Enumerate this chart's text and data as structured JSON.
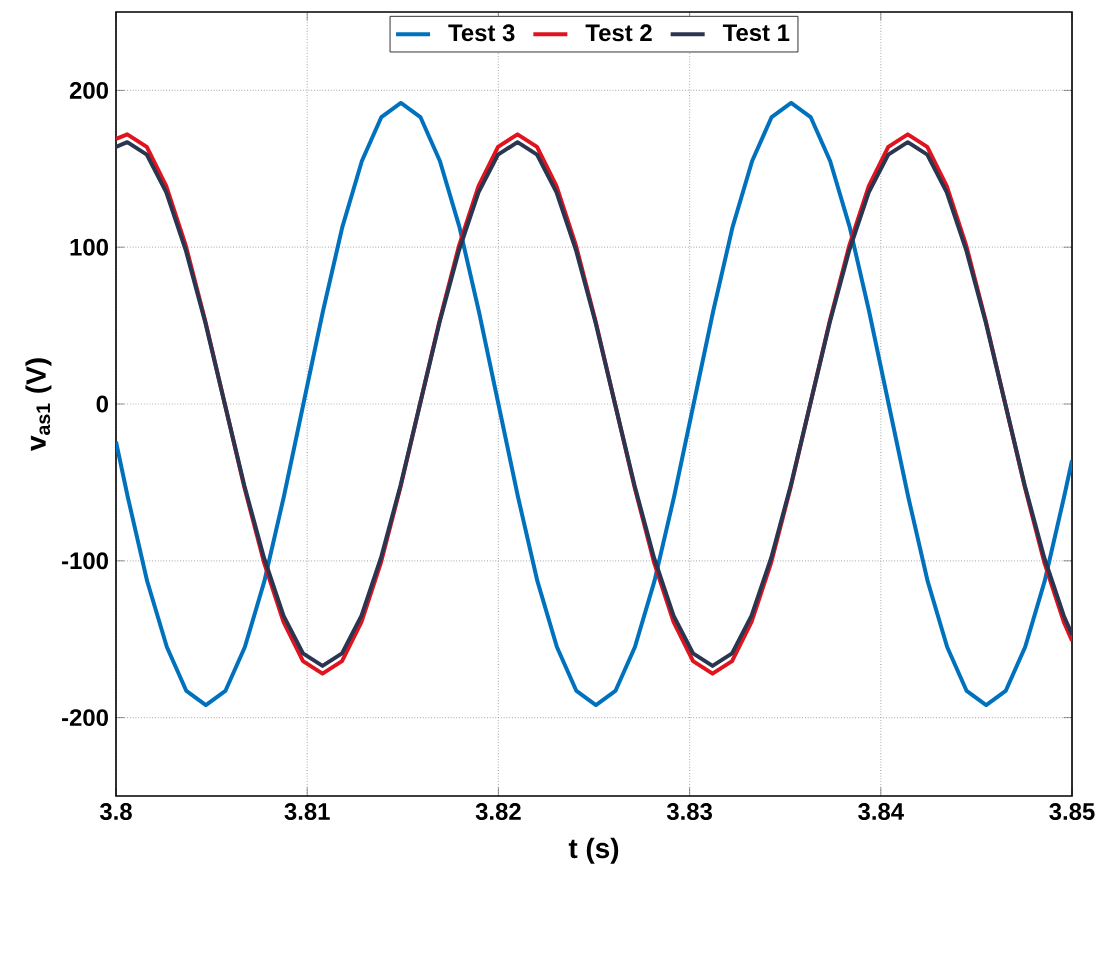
{
  "chart_data": {
    "type": "line",
    "xlabel": "t (s)",
    "ylabel": "**v$_{as1}$ (V)**",
    "xlim": [
      3.8,
      3.85
    ],
    "ylim": [
      -250,
      250
    ],
    "xticks": [
      3.8,
      3.81,
      3.82,
      3.83,
      3.84,
      3.85
    ],
    "yticks": [
      -200,
      -100,
      0,
      100,
      200
    ],
    "grid": true,
    "legend": "top",
    "line_style": "solid",
    "marker": "none",
    "series": [
      {
        "name": "Test 3",
        "color": "#0072bd",
        "x": [
          3.8,
          3.80061,
          3.80163,
          3.80266,
          3.80368,
          3.8047,
          3.80572,
          3.80674,
          3.80776,
          3.80878,
          3.8098,
          3.81082,
          3.81184,
          3.81286,
          3.81388,
          3.8149,
          3.81592,
          3.81694,
          3.81796,
          3.81898,
          3.82,
          3.82102,
          3.82204,
          3.82306,
          3.82408,
          3.8251,
          3.82612,
          3.82714,
          3.82816,
          3.82919,
          3.83021,
          3.83123,
          3.83225,
          3.83327,
          3.83429,
          3.83531,
          3.83633,
          3.83735,
          3.83837,
          3.83939,
          3.84041,
          3.84143,
          3.84245,
          3.84347,
          3.84449,
          3.84551,
          3.84653,
          3.84755,
          3.84857,
          3.84959,
          3.85
        ],
        "values": [
          -24,
          -59,
          -113,
          -155,
          -183,
          -192,
          -183,
          -155,
          -113,
          -59,
          0,
          59,
          113,
          155,
          183,
          192,
          183,
          155,
          113,
          59,
          0,
          -59,
          -113,
          -155,
          -183,
          -192,
          -183,
          -155,
          -113,
          -59,
          0,
          59,
          113,
          155,
          183,
          192,
          183,
          155,
          113,
          59,
          0,
          -59,
          -113,
          -155,
          -183,
          -192,
          -183,
          -155,
          -113,
          -59,
          -36
        ]
      },
      {
        "name": "Test 2",
        "color": "#e0141e",
        "x": [
          3.8,
          3.80059,
          3.80161,
          3.80263,
          3.80365,
          3.80467,
          3.80569,
          3.80671,
          3.80774,
          3.80876,
          3.80978,
          3.8108,
          3.81182,
          3.81284,
          3.81386,
          3.81488,
          3.8159,
          3.81692,
          3.81794,
          3.81896,
          3.81998,
          3.821,
          3.82202,
          3.82304,
          3.82406,
          3.82508,
          3.8261,
          3.82712,
          3.82814,
          3.82916,
          3.83018,
          3.8312,
          3.83222,
          3.83324,
          3.83427,
          3.83529,
          3.83631,
          3.83733,
          3.83835,
          3.83937,
          3.84039,
          3.84141,
          3.84243,
          3.84345,
          3.84447,
          3.84549,
          3.84651,
          3.84753,
          3.84855,
          3.84957,
          3.85
        ],
        "values": [
          169,
          172,
          164,
          139,
          101,
          53,
          0,
          -53,
          -101,
          -139,
          -164,
          -172,
          -164,
          -139,
          -101,
          -53,
          0,
          53,
          101,
          139,
          164,
          172,
          164,
          139,
          101,
          53,
          0,
          -53,
          -101,
          -139,
          -164,
          -172,
          -164,
          -139,
          -101,
          -53,
          0,
          53,
          101,
          139,
          164,
          172,
          164,
          139,
          101,
          53,
          0,
          -53,
          -101,
          -139,
          -151
        ]
      },
      {
        "name": "Test 1",
        "color": "#2a3650",
        "x": [
          3.8,
          3.80059,
          3.80161,
          3.80263,
          3.80365,
          3.80467,
          3.80569,
          3.80671,
          3.80774,
          3.80876,
          3.80978,
          3.8108,
          3.81182,
          3.81284,
          3.81386,
          3.81488,
          3.8159,
          3.81692,
          3.81794,
          3.81896,
          3.81998,
          3.821,
          3.82202,
          3.82304,
          3.82406,
          3.82508,
          3.8261,
          3.82712,
          3.82814,
          3.82916,
          3.83018,
          3.8312,
          3.83222,
          3.83324,
          3.83427,
          3.83529,
          3.83631,
          3.83733,
          3.83835,
          3.83937,
          3.84039,
          3.84141,
          3.84243,
          3.84345,
          3.84447,
          3.84549,
          3.84651,
          3.84753,
          3.84855,
          3.84957,
          3.85
        ],
        "values": [
          164,
          167,
          159,
          135,
          98,
          52,
          0,
          -52,
          -98,
          -135,
          -159,
          -167,
          -159,
          -135,
          -98,
          -52,
          0,
          52,
          98,
          135,
          159,
          167,
          159,
          135,
          98,
          52,
          0,
          -52,
          -98,
          -135,
          -159,
          -167,
          -159,
          -135,
          -98,
          -52,
          0,
          52,
          98,
          135,
          159,
          167,
          159,
          135,
          98,
          52,
          0,
          -52,
          -98,
          -135,
          -147
        ]
      }
    ]
  }
}
